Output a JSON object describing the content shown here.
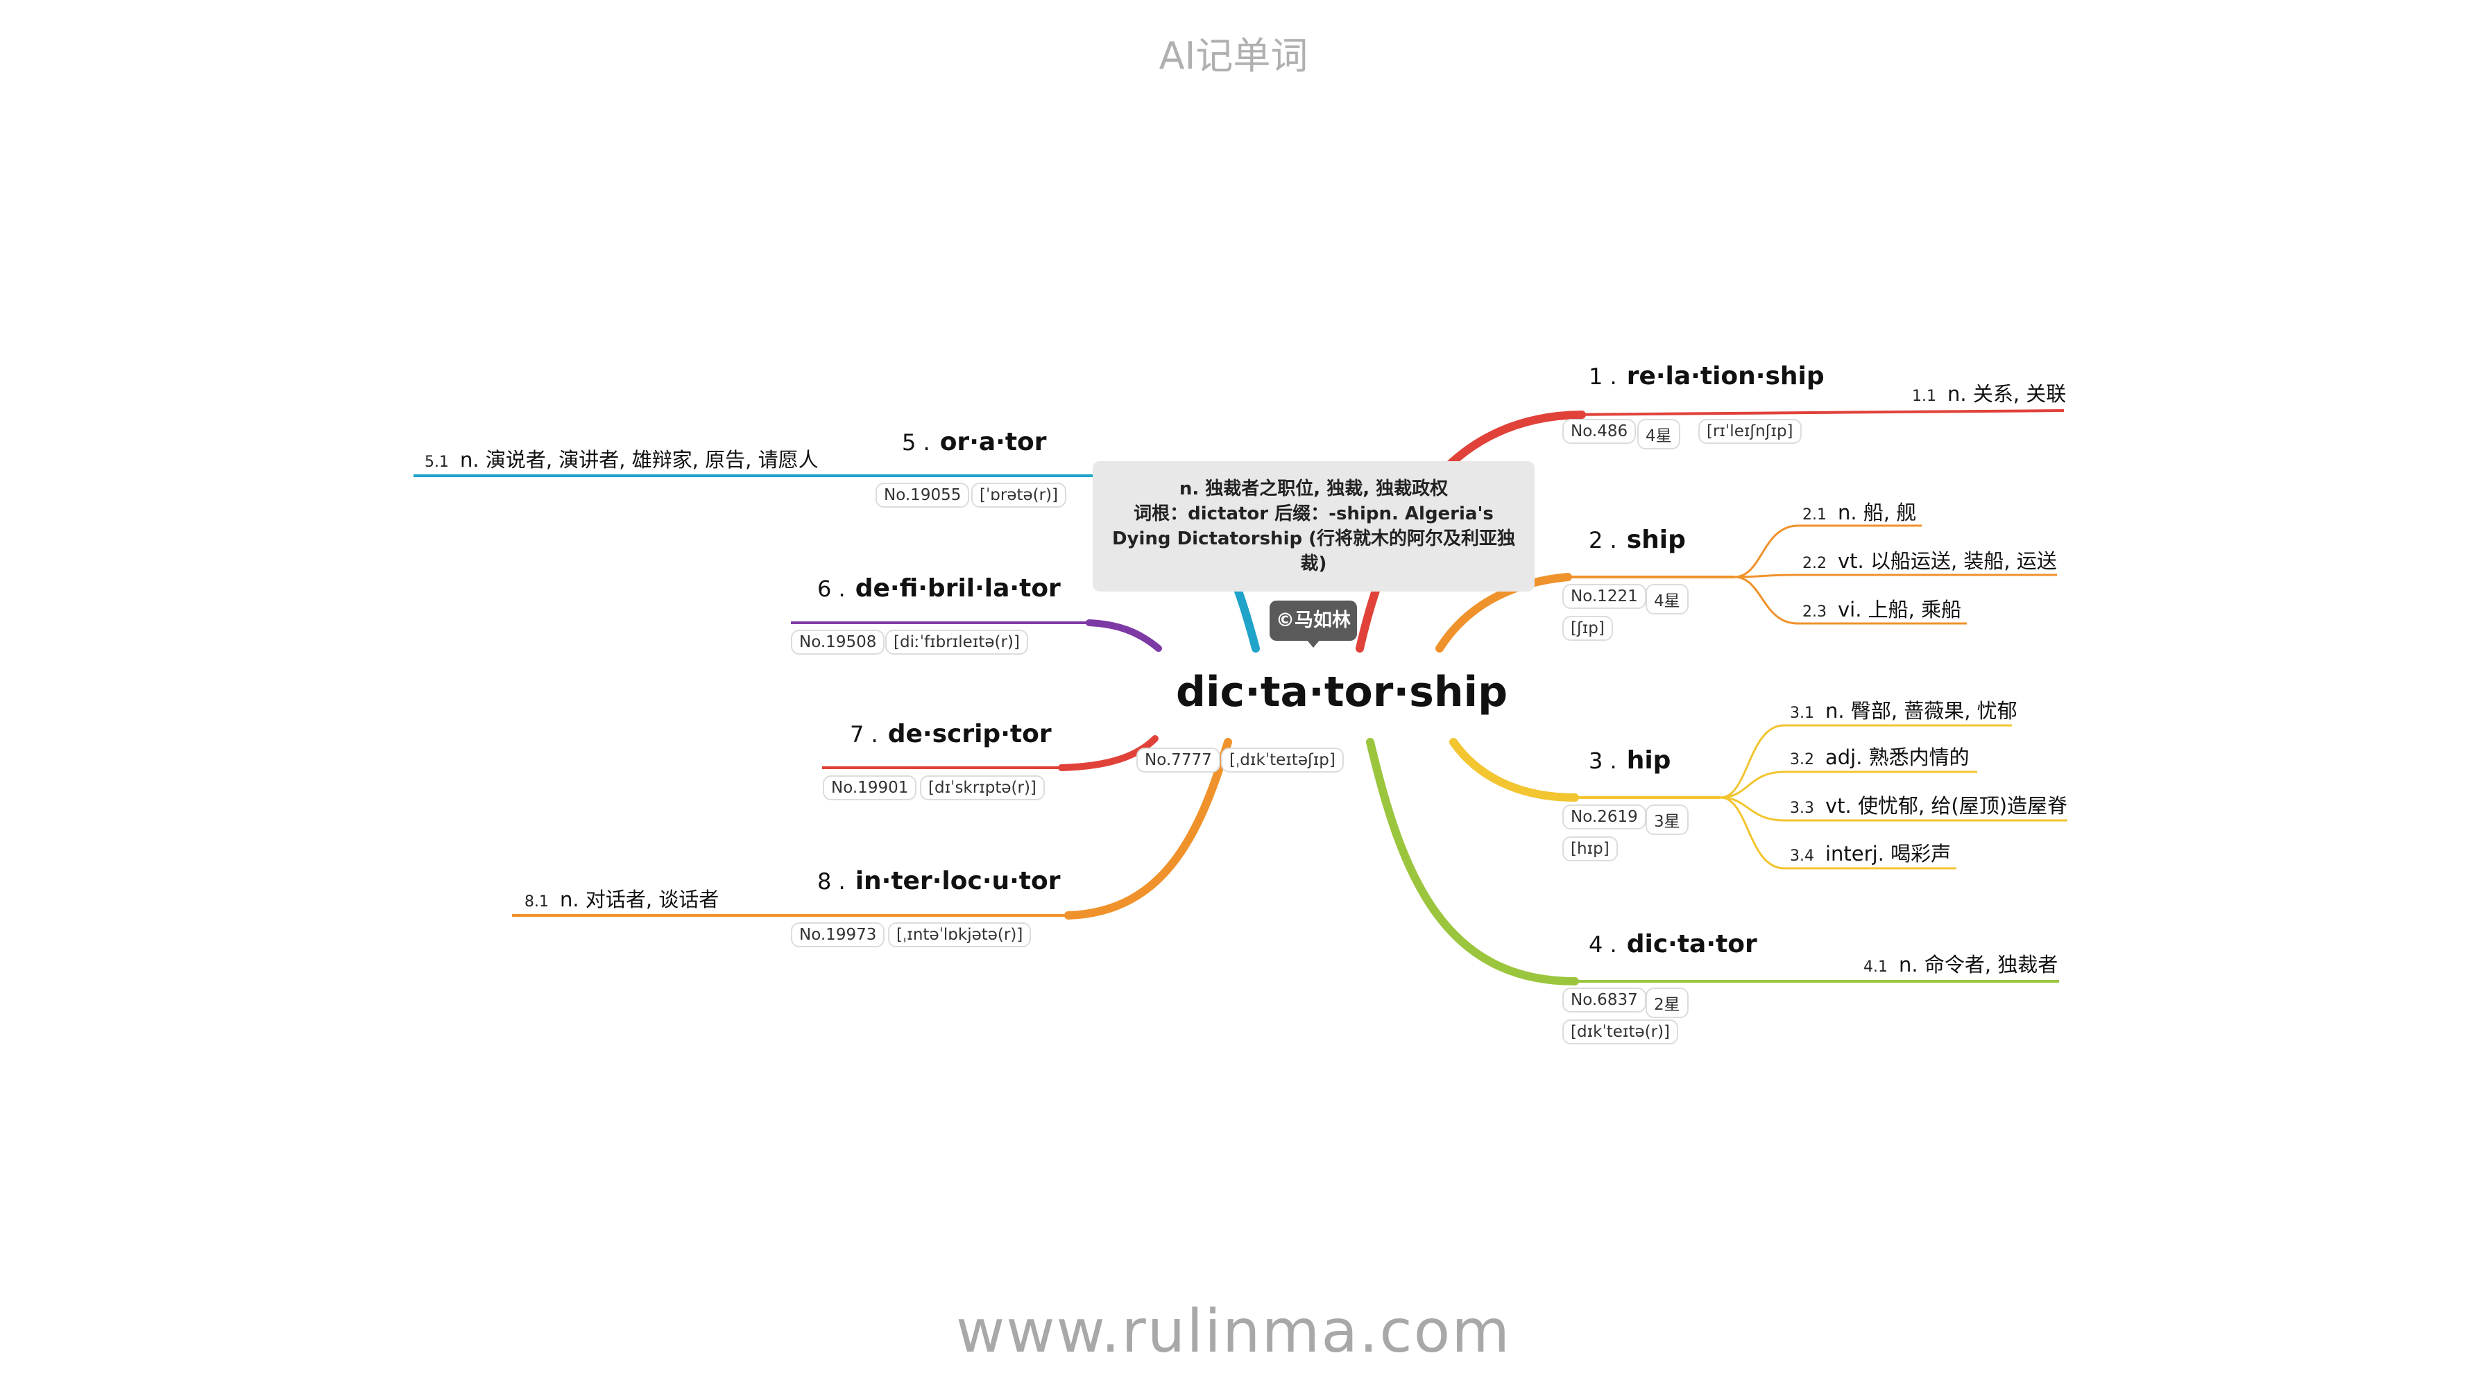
{
  "header": {
    "title": "AI记单词"
  },
  "footer": {
    "url": "www.rulinma.com"
  },
  "center": {
    "word": "dic·ta·tor·ship",
    "no": "No.7777",
    "phonetic": "[ˌdɪkˈteɪtəʃɪp]",
    "note_lines": [
      "n. 独裁者之职位, 独裁, 独裁政权",
      "词根：dictator 后缀：-shipn. Algeria's",
      "Dying Dictatorship (行将就木的阿尔及利亚独",
      "裁)"
    ],
    "copyright": "©马如林"
  },
  "branches": {
    "b1": {
      "num": "1 .",
      "word": "re·la·tion·ship",
      "no": "No.486",
      "star": "4星",
      "phonetic": "[rɪˈleɪʃnʃɪp]",
      "color": "#e0423a",
      "subs": [
        {
          "n": "1.1",
          "text": "n. 关系, 关联"
        }
      ]
    },
    "b2": {
      "num": "2 .",
      "word": "ship",
      "no": "No.1221",
      "star": "4星",
      "phonetic": "[ʃɪp]",
      "color": "#f0922b",
      "subs": [
        {
          "n": "2.1",
          "text": "n. 船, 舰"
        },
        {
          "n": "2.2",
          "text": "vt. 以船运送, 装船, 运送"
        },
        {
          "n": "2.3",
          "text": "vi. 上船, 乘船"
        }
      ]
    },
    "b3": {
      "num": "3 .",
      "word": "hip",
      "no": "No.2619",
      "star": "3星",
      "phonetic": "[hɪp]",
      "color": "#f2c531",
      "subs": [
        {
          "n": "3.1",
          "text": "n. 臀部, 蔷薇果, 忧郁"
        },
        {
          "n": "3.2",
          "text": "adj. 熟悉内情的"
        },
        {
          "n": "3.3",
          "text": "vt. 使忧郁, 给(屋顶)造屋脊"
        },
        {
          "n": "3.4",
          "text": "interj. 喝彩声"
        }
      ]
    },
    "b4": {
      "num": "4 .",
      "word": "dic·ta·tor",
      "no": "No.6837",
      "star": "2星",
      "phonetic": "[dɪkˈteɪtə(r)]",
      "color": "#9bc53d",
      "subs": [
        {
          "n": "4.1",
          "text": "n. 命令者, 独裁者"
        }
      ]
    },
    "b5": {
      "num": "5 .",
      "word": "or·a·tor",
      "no": "No.19055",
      "phonetic": "[ˈɒrətə(r)]",
      "color": "#1fa3c9",
      "subs": [
        {
          "n": "5.1",
          "text": "n. 演说者, 演讲者, 雄辩家, 原告, 请愿人"
        }
      ]
    },
    "b6": {
      "num": "6 .",
      "word": "de·fi·bril·la·tor",
      "no": "No.19508",
      "phonetic": "[diːˈfɪbrɪleɪtə(r)]",
      "color": "#7d3aa5"
    },
    "b7": {
      "num": "7 .",
      "word": "de·scrip·tor",
      "no": "No.19901",
      "phonetic": "[dɪˈskrɪptə(r)]",
      "color": "#e0423a"
    },
    "b8": {
      "num": "8 .",
      "word": "in·ter·loc·u·tor",
      "no": "No.19973",
      "phonetic": "[ˌɪntəˈlɒkjətə(r)]",
      "color": "#f0922b",
      "subs": [
        {
          "n": "8.1",
          "text": "n. 对话者, 谈话者"
        }
      ]
    }
  }
}
